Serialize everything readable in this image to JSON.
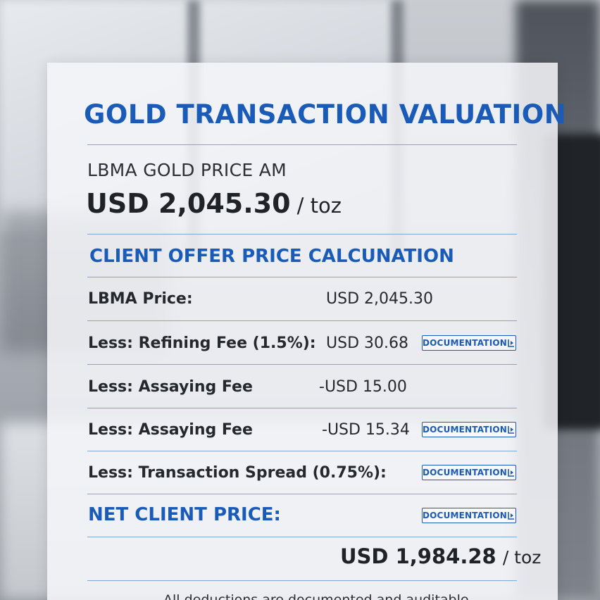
{
  "card": {
    "title": "GOLD TRANSACTION VALUATION",
    "benchmark_label": "LBMA GOLD PRICE AM",
    "benchmark_amount": "USD 2,045.30",
    "benchmark_unit": "/ toz",
    "section_title": "CLIENT OFFER PRICE CALCUNATION"
  },
  "rows": [
    {
      "label": "LBMA Price:",
      "value": "USD 2,045.30",
      "has_doc": false
    },
    {
      "label": "Less: Refining Fee (1.5%):",
      "value": "USD 30.68",
      "has_doc": true
    },
    {
      "label": "Less: Assaying Fee",
      "value": "-USD 15.00",
      "has_doc": false
    },
    {
      "label": "Less: Assaying Fee",
      "value": "-USD 15.34",
      "has_doc": true
    },
    {
      "label": "Less: Transaction Spread (0.75%):",
      "value": "",
      "has_doc": true
    }
  ],
  "documentation_label": "DOCUMENTATION",
  "net": {
    "label": "NET CLIENT PRICE:",
    "amount": "USD 1,984.28",
    "unit": "/ toz"
  },
  "footnote": "All deductions are documented and auditable",
  "colors": {
    "accent": "#1a5bb8",
    "text": "#25292e",
    "rule": "#7fa6d8"
  },
  "icons": {
    "doc_button": "open-document-icon"
  }
}
